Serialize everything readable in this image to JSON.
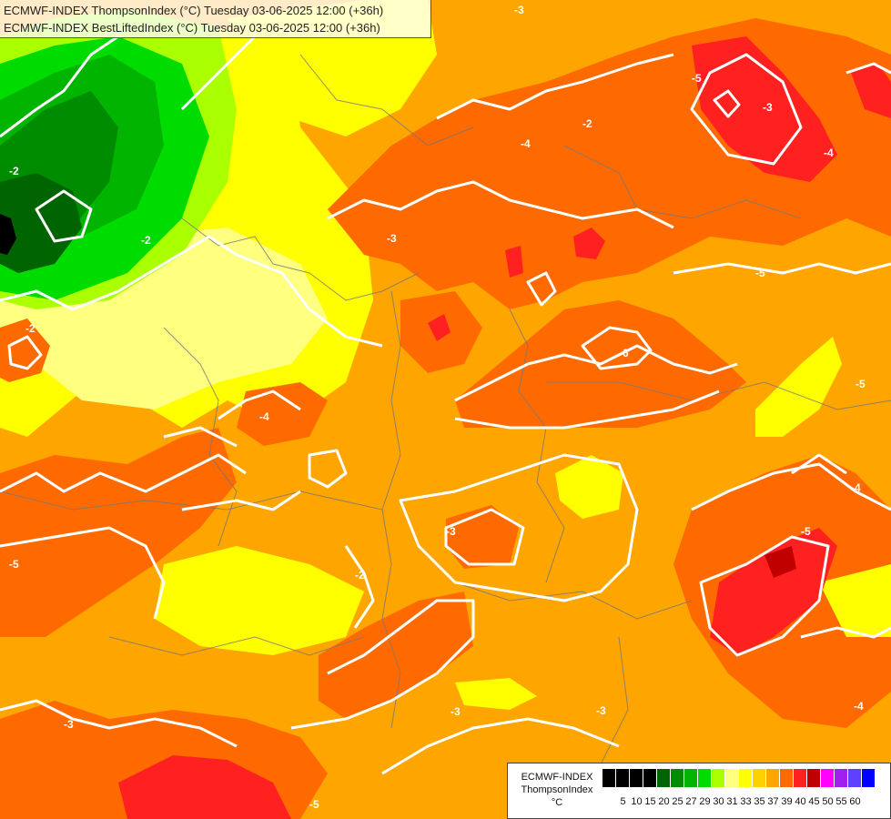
{
  "titles": {
    "line1": "ECMWF-INDEX ThompsonIndex (°C) Tuesday 03-06-2025 12:00 (+36h)",
    "line2": "ECMWF-INDEX BestLiftedIndex (°C) Tuesday 03-06-2025 12:00 (+36h)"
  },
  "legend": {
    "title": "ECMWF-INDEX",
    "variable": "ThompsonIndex",
    "unit": "°C",
    "ticks": [
      "5",
      "10",
      "15",
      "20",
      "25",
      "27",
      "29",
      "30",
      "31",
      "33",
      "35",
      "37",
      "39",
      "40",
      "45",
      "50",
      "55",
      "60"
    ],
    "colors": [
      "#000000",
      "#000000",
      "#000000",
      "#000000",
      "#006400",
      "#008c00",
      "#00b400",
      "#00dc00",
      "#aaff00",
      "#ffff80",
      "#ffff00",
      "#ffd000",
      "#ffa500",
      "#ff6a00",
      "#ff2020",
      "#c00000",
      "#ff00ff",
      "#a020f0",
      "#6040ff",
      "#0000ff"
    ]
  },
  "map": {
    "contour_labels": [
      "-2",
      "-2",
      "-3",
      "-3",
      "-4",
      "-4",
      "-5",
      "-5",
      "-6",
      "-3",
      "-2",
      "-3",
      "-4",
      "-5",
      "-2",
      "-3",
      "-4",
      "-5",
      "-3",
      "-2",
      "-4",
      "-5",
      "-3",
      "-5"
    ]
  }
}
